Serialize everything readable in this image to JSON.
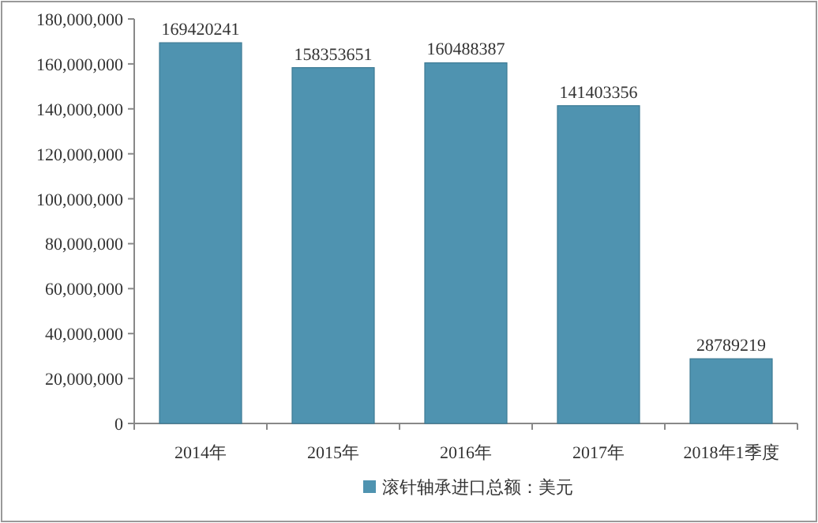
{
  "chart_data": {
    "type": "bar",
    "categories": [
      "2014年",
      "2015年",
      "2016年",
      "2017年",
      "2018年1季度"
    ],
    "series": [
      {
        "name": "滚针轴承进口总额：美元",
        "color": "#4f93b0",
        "values": [
          169420241,
          158353651,
          160488387,
          141403356,
          28789219
        ]
      }
    ],
    "ylim": [
      0,
      180000000
    ],
    "yticks": [
      0,
      {
        "value": 20000000,
        "label": "20,000,000"
      },
      {
        "value": 40000000,
        "label": "40,000,000"
      },
      {
        "value": 60000000,
        "label": "60,000,000"
      },
      {
        "value": 80000000,
        "label": "80,000,000"
      },
      {
        "value": 100000000,
        "label": "100,000,000"
      },
      {
        "value": 120000000,
        "label": "120,000,000"
      },
      {
        "value": 140000000,
        "label": "140,000,000"
      },
      {
        "value": 160000000,
        "label": "160,000,000"
      },
      {
        "value": 180000000,
        "label": "180,000,000"
      }
    ],
    "data_labels": true,
    "legend": "bottom"
  }
}
